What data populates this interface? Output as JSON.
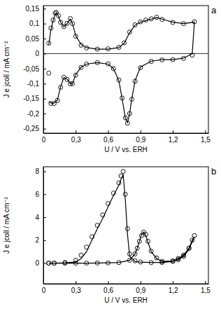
{
  "chart_data": [
    {
      "type": "line",
      "annotation": "a",
      "x_label": "U / V vs. ERH",
      "y_label": "J e jcoll / mA cm⁻²",
      "x": [
        0.05,
        0.07,
        0.09,
        0.11,
        0.12,
        0.14,
        0.16,
        0.19,
        0.22,
        0.25,
        0.27,
        0.3,
        0.35,
        0.4,
        0.5,
        0.6,
        0.7,
        0.75,
        0.8,
        0.85,
        0.9,
        0.95,
        1.0,
        1.05,
        1.1,
        1.2,
        1.3,
        1.4,
        1.38,
        1.3,
        1.2,
        1.1,
        1.0,
        0.9,
        0.85,
        0.82,
        0.8,
        0.78,
        0.76,
        0.73,
        0.7,
        0.65,
        0.6,
        0.5,
        0.4,
        0.35,
        0.3,
        0.27,
        0.25,
        0.22,
        0.19,
        0.16,
        0.13,
        0.1,
        0.07,
        0.05
      ],
      "series": [
        {
          "type": "line",
          "line_style": "solid",
          "color": "#000000",
          "values": [
            0.03,
            0.08,
            0.11,
            0.132,
            0.135,
            0.125,
            0.105,
            0.09,
            0.1,
            0.115,
            0.1,
            0.06,
            0.03,
            0.02,
            0.015,
            0.015,
            0.02,
            0.035,
            0.07,
            0.095,
            0.105,
            0.11,
            0.115,
            0.12,
            0.115,
            0.105,
            0.1,
            0.105,
            0.0,
            -0.015,
            -0.02,
            -0.02,
            -0.025,
            -0.045,
            -0.09,
            -0.15,
            -0.2,
            -0.23,
            -0.215,
            -0.15,
            -0.09,
            -0.05,
            -0.035,
            -0.03,
            -0.035,
            -0.045,
            -0.07,
            -0.1,
            -0.1,
            -0.085,
            -0.08,
            -0.11,
            -0.155,
            -0.165,
            -0.165,
            -0.16
          ]
        },
        {
          "type": "scatter",
          "marker": "circle",
          "color": "#000000",
          "values": [
            0.035,
            0.085,
            0.112,
            0.135,
            0.137,
            0.126,
            0.104,
            0.09,
            0.101,
            0.117,
            0.1,
            0.058,
            0.028,
            0.019,
            0.015,
            0.016,
            0.021,
            0.036,
            0.072,
            0.096,
            0.106,
            0.112,
            0.116,
            0.121,
            0.114,
            0.104,
            0.1,
            0.106,
            -0.005,
            -0.016,
            -0.02,
            -0.021,
            -0.026,
            -0.047,
            -0.092,
            -0.152,
            -0.2,
            -0.232,
            -0.214,
            -0.148,
            -0.088,
            -0.05,
            -0.034,
            -0.03,
            -0.035,
            -0.046,
            -0.072,
            -0.1,
            -0.101,
            -0.086,
            -0.079,
            -0.112,
            -0.156,
            -0.166,
            -0.166,
            -0.065
          ]
        }
      ],
      "hline": 0,
      "xlim": [
        0,
        1.53
      ],
      "xticks": [
        0,
        {
          "value": 0.3,
          "label": "0,3"
        },
        {
          "value": 0.6,
          "label": "0,6"
        },
        {
          "value": 0.9,
          "label": "0,9"
        },
        {
          "value": 1.2,
          "label": "1,2"
        },
        {
          "value": 1.5,
          "label": "1,5"
        }
      ],
      "ylim": [
        -0.265,
        0.16
      ],
      "yticks": [
        {
          "value": -0.25,
          "label": "-0,25"
        },
        {
          "value": -0.2,
          "label": "-0,2"
        },
        {
          "value": -0.15,
          "label": "-0,15"
        },
        {
          "value": -0.1,
          "label": "-0,1"
        },
        {
          "value": -0.05,
          "label": "-0,05"
        },
        0,
        {
          "value": 0.05,
          "label": "0,05"
        },
        {
          "value": 0.1,
          "label": "0,1"
        },
        {
          "value": 0.15,
          "label": "0,15"
        }
      ]
    },
    {
      "type": "line",
      "annotation": "b",
      "x_label": "U / V vs. ERH",
      "y_label": "J e jcoll / mA cm⁻²",
      "x": [
        0.05,
        0.1,
        0.2,
        0.3,
        0.35,
        0.4,
        0.45,
        0.5,
        0.55,
        0.6,
        0.65,
        0.7,
        0.72,
        0.74,
        0.76,
        0.78,
        0.8,
        0.85,
        0.9,
        1.0,
        1.1,
        1.2,
        1.25,
        1.3,
        1.35,
        1.4,
        1.38,
        1.35,
        1.3,
        1.25,
        1.2,
        1.1,
        1.05,
        1.0,
        0.97,
        0.95,
        0.93,
        0.91,
        0.89,
        0.87,
        0.85,
        0.8,
        0.7,
        0.6,
        0.5,
        0.4,
        0.3,
        0.2,
        0.1,
        0.05
      ],
      "series": [
        {
          "type": "line",
          "line_style": "solid",
          "color": "#000000",
          "values": [
            0,
            0,
            0.02,
            0.1,
            0.4,
            1.0,
            2.0,
            3.0,
            3.9,
            4.9,
            5.9,
            6.8,
            7.3,
            7.7,
            5.5,
            2.5,
            0.6,
            0.15,
            0.08,
            0.05,
            0.06,
            0.15,
            0.3,
            0.6,
            1.2,
            2.3,
            2.0,
            1.3,
            0.7,
            0.4,
            0.2,
            0.15,
            0.4,
            1.0,
            1.8,
            2.4,
            2.7,
            2.5,
            1.9,
            1.3,
            0.8,
            0.25,
            0.05,
            0.02,
            0.01,
            0,
            0,
            0,
            0,
            0
          ]
        },
        {
          "type": "scatter",
          "marker": "circle",
          "color": "#000000",
          "values": [
            0,
            0,
            0.05,
            0.25,
            0.7,
            1.4,
            2.3,
            3.3,
            4.2,
            5.2,
            6.1,
            7.0,
            7.6,
            8.0,
            6.0,
            3.0,
            0.8,
            0.2,
            0.1,
            0.05,
            0.06,
            0.15,
            0.3,
            0.6,
            1.3,
            2.4,
            2.0,
            1.3,
            0.7,
            0.4,
            0.2,
            0.15,
            0.45,
            1.05,
            1.9,
            2.5,
            2.7,
            2.4,
            1.9,
            1.3,
            0.8,
            0.25,
            0.05,
            0.02,
            0.01,
            0,
            0,
            0,
            0,
            0
          ]
        }
      ],
      "xlim": [
        0,
        1.53
      ],
      "xticks": [
        0,
        {
          "value": 0.3,
          "label": "0,3"
        },
        {
          "value": 0.6,
          "label": "0,6"
        },
        {
          "value": 0.9,
          "label": "0,9"
        },
        {
          "value": 1.2,
          "label": "1,2"
        },
        {
          "value": 1.5,
          "label": "1,5"
        }
      ],
      "ylim": [
        -1.8,
        8.4
      ],
      "yticks": [
        0,
        2,
        4,
        6,
        8
      ]
    }
  ]
}
